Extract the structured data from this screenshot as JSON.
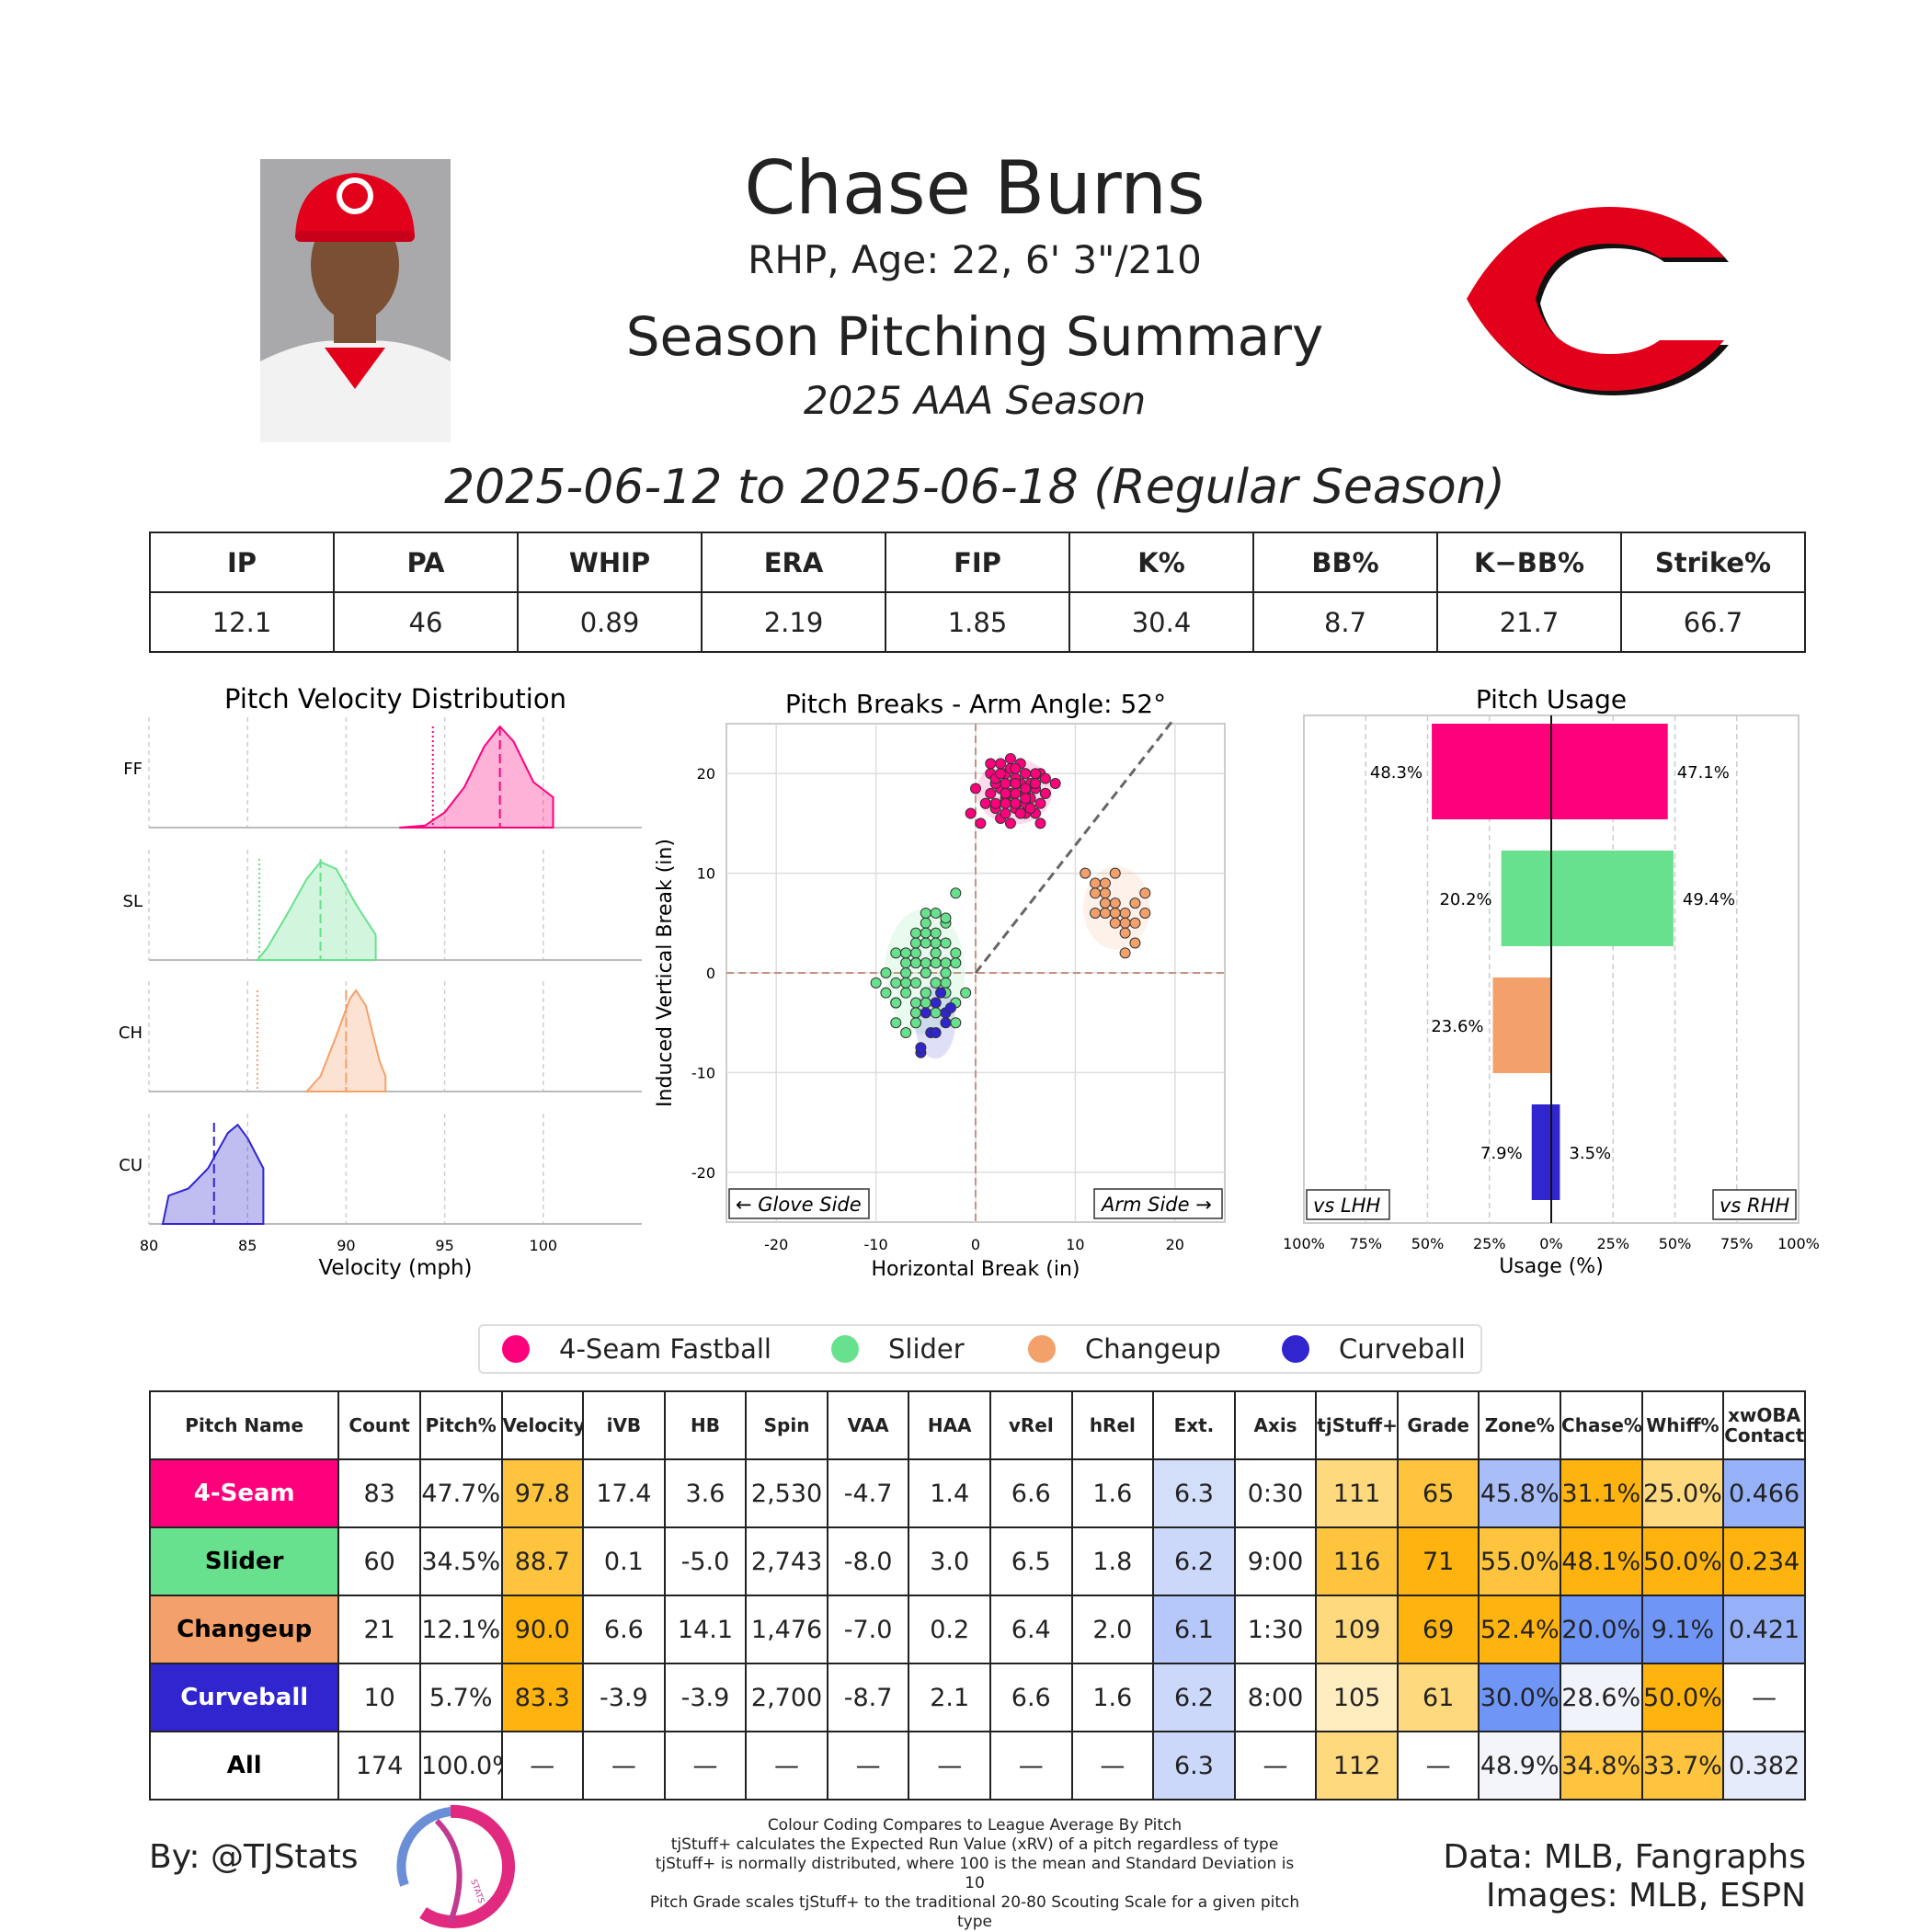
{
  "header": {
    "name": "Chase Burns",
    "bio": "RHP, Age: 22, 6' 3\"/210",
    "summary_title": "Season Pitching Summary",
    "season": "2025 AAA Season",
    "date_range": "2025-06-12 to 2025-06-18 (Regular Season)"
  },
  "colors": {
    "ff": "#ff007d",
    "sl": "#67e18d",
    "ch": "#f4a06b",
    "cu": "#3025ce",
    "team_red": "#e3001b"
  },
  "summary_stats": {
    "headers": [
      "IP",
      "PA",
      "WHIP",
      "ERA",
      "FIP",
      "K%",
      "BB%",
      "K−BB%",
      "Strike%"
    ],
    "values": [
      "12.1",
      "46",
      "0.89",
      "2.19",
      "1.85",
      "30.4",
      "8.7",
      "21.7",
      "66.7"
    ]
  },
  "chart_data": [
    {
      "type": "area",
      "title": "Pitch Velocity Distribution",
      "xlabel": "Velocity (mph)",
      "xlim": [
        80,
        105
      ],
      "xticks": [
        "80",
        "85",
        "90",
        "95",
        "100"
      ],
      "series": [
        {
          "name": "FF",
          "x": [
            92.7,
            94,
            95,
            96,
            97,
            97.8,
            98.5,
            99.5,
            100.5,
            100.5
          ],
          "y": [
            0,
            0.02,
            0.15,
            0.4,
            0.8,
            1.0,
            0.85,
            0.45,
            0.3,
            0
          ],
          "mean": 97.8,
          "league_mean": 94.4
        },
        {
          "name": "SL",
          "x": [
            85.5,
            86,
            87,
            88,
            88.7,
            89.5,
            90.5,
            91.5,
            91.5
          ],
          "y": [
            0,
            0.12,
            0.45,
            0.8,
            0.97,
            0.9,
            0.55,
            0.25,
            0
          ],
          "mean": 88.7,
          "league_mean": 85.6
        },
        {
          "name": "CH",
          "x": [
            88,
            88.7,
            89.5,
            90.2,
            90.5,
            91,
            91.7,
            92,
            92
          ],
          "y": [
            0,
            0.15,
            0.55,
            0.92,
            1.0,
            0.85,
            0.3,
            0.15,
            0
          ],
          "mean": 90.0,
          "league_mean": 85.5
        },
        {
          "name": "CU",
          "x": [
            80.7,
            81,
            82,
            83,
            84,
            84.5,
            85,
            85.8,
            85.8
          ],
          "y": [
            0,
            0.28,
            0.35,
            0.55,
            0.9,
            0.98,
            0.85,
            0.55,
            0
          ],
          "mean": 83.3,
          "league_mean": null
        }
      ]
    },
    {
      "type": "scatter",
      "title": "Pitch Breaks - Arm Angle: 52°",
      "xlabel": "Horizontal Break (in)",
      "ylabel": "Induced Vertical Break (in)",
      "xlim": [
        -25,
        25
      ],
      "ylim": [
        -25,
        25
      ],
      "xticks": [
        "-20",
        "-10",
        "0",
        "10",
        "20"
      ],
      "yticks": [
        "20",
        "10",
        "0",
        "-10",
        "-20"
      ],
      "arm_angle_deg": 52,
      "annotations": [
        "← Glove Side",
        "Arm Side →"
      ],
      "series": [
        {
          "name": "4-Seam Fastball",
          "x": [
            1.5,
            2,
            2.5,
            3,
            3.5,
            4,
            4.5,
            5,
            5.5,
            6,
            6.5,
            7,
            3,
            4,
            5,
            2,
            1,
            0.5,
            -0.5,
            0,
            1.5,
            2.5,
            3.5,
            4.5,
            5.5,
            6.5,
            3,
            4,
            5,
            6,
            2,
            3,
            4,
            5,
            6,
            7,
            1,
            2,
            3,
            4,
            5,
            6,
            7,
            8,
            2.5,
            3.5,
            4.5,
            5.5,
            6.5,
            3,
            4,
            5,
            6,
            2,
            3,
            4,
            5,
            1.5,
            2.5,
            3.5
          ],
          "y": [
            18,
            19,
            18.5,
            17.5,
            18,
            17,
            19,
            18,
            17.5,
            18.5,
            17,
            18,
            20,
            19.5,
            16,
            16.5,
            17,
            15,
            16,
            18.5,
            20,
            21,
            20.5,
            21,
            19,
            20,
            17,
            16.5,
            17,
            16,
            19,
            18,
            19,
            18.5,
            19,
            18,
            17,
            17,
            18,
            18,
            20,
            20,
            19.5,
            19,
            15.5,
            15,
            16,
            16.5,
            15,
            16,
            17,
            17.5,
            19,
            19.5,
            19,
            20.5,
            20,
            21,
            20,
            21.5
          ]
        },
        {
          "name": "Slider",
          "x": [
            -3,
            -4,
            -5,
            -6,
            -7,
            -8,
            -9,
            -4,
            -5,
            -6,
            -3,
            -2,
            -4,
            -5,
            -6,
            -7,
            -3,
            -4,
            -5,
            -6,
            -7,
            -8,
            -2,
            -3,
            -4,
            -5,
            -6,
            -7,
            -8,
            -9,
            -10,
            -4,
            -5,
            -6,
            -3,
            -2,
            -1,
            -4,
            -5,
            -6,
            -7,
            -3,
            -4,
            -5,
            -6,
            -2,
            -3,
            -4,
            -5,
            -6,
            -7,
            -8,
            -5,
            -4,
            -3,
            -2,
            -6,
            -7,
            -8,
            -4
          ],
          "y": [
            1,
            2,
            0,
            3,
            1,
            -1,
            0,
            4,
            -2,
            -3,
            5,
            8,
            -1,
            1,
            2,
            -2,
            -4,
            -3,
            3,
            4,
            0,
            2,
            -5,
            -1,
            6,
            5,
            -4,
            -6,
            -5,
            -2,
            -1,
            2,
            0,
            1,
            3,
            1,
            -2,
            -4,
            -3,
            -5,
            2,
            5.5,
            -1,
            -2,
            1,
            2,
            0,
            3,
            4,
            -1,
            2,
            -3,
            6,
            1,
            -2,
            -3,
            -4,
            -1,
            -3,
            1
          ]
        },
        {
          "name": "Changeup",
          "x": [
            11,
            12,
            13,
            14,
            15,
            16,
            17,
            12,
            13,
            14,
            15,
            16,
            17,
            12,
            13,
            14,
            15,
            16,
            15,
            14,
            13
          ],
          "y": [
            10,
            9,
            8,
            7,
            6,
            5,
            6,
            8,
            7,
            6,
            5,
            7,
            8,
            6,
            9,
            10,
            4,
            3,
            2,
            5,
            6
          ]
        },
        {
          "name": "Curveball",
          "x": [
            -5,
            -4.5,
            -4,
            -3.5,
            -3,
            -5.5,
            -4,
            -3,
            -2.5,
            -5.5
          ],
          "y": [
            -4,
            -6,
            -3,
            -2,
            -5,
            -8,
            -6,
            -4,
            -3.5,
            -7.5
          ]
        }
      ]
    },
    {
      "type": "bar",
      "title": "Pitch Usage",
      "xlabel": "Usage (%)",
      "xlim": [
        -100,
        100
      ],
      "xticks": [
        "100%",
        "75%",
        "50%",
        "25%",
        "0%",
        "25%",
        "50%",
        "75%",
        "100%"
      ],
      "annotations": [
        "vs LHH",
        "vs RHH"
      ],
      "categories": [
        "4-Seam Fastball",
        "Slider",
        "Changeup",
        "Curveball"
      ],
      "series": [
        {
          "name": "vs LHH",
          "values": [
            48.3,
            20.2,
            23.6,
            7.9
          ],
          "labels": [
            "48.3%",
            "20.2%",
            "23.6%",
            "7.9%"
          ]
        },
        {
          "name": "vs RHH",
          "values": [
            47.1,
            49.4,
            0,
            3.5
          ],
          "labels": [
            "47.1%",
            "49.4%",
            "",
            "3.5%"
          ]
        }
      ]
    }
  ],
  "legend": [
    "4-Seam Fastball",
    "Slider",
    "Changeup",
    "Curveball"
  ],
  "pitch_table": {
    "headers": [
      "Pitch Name",
      "Count",
      "Pitch%",
      "Velocity",
      "iVB",
      "HB",
      "Spin",
      "VAA",
      "HAA",
      "vRel",
      "hRel",
      "Ext.",
      "Axis",
      "tjStuff+",
      "Grade",
      "Zone%",
      "Chase%",
      "Whiff%",
      "xwOBA Contact"
    ],
    "rows": [
      {
        "cells": [
          "4-Seam",
          "83",
          "47.7%",
          "97.8",
          "17.4",
          "3.6",
          "2,530",
          "-4.7",
          "1.4",
          "6.6",
          "1.6",
          "6.3",
          "0:30",
          "111",
          "65",
          "45.8%",
          "31.1%",
          "25.0%",
          "0.466"
        ],
        "name_bg": "#ff007d",
        "name_fg": "#ffffff",
        "cell_bg": {
          "3": "#ffc43d",
          "11": "#d3def9",
          "13": "#ffd97d",
          "14": "#ffc43d",
          "15": "#a9bdf8",
          "16": "#ffb30f",
          "17": "#ffd97d",
          "18": "#96b1f8"
        }
      },
      {
        "cells": [
          "Slider",
          "60",
          "34.5%",
          "88.7",
          "0.1",
          "-5.0",
          "2,743",
          "-8.0",
          "3.0",
          "6.5",
          "1.8",
          "6.2",
          "9:00",
          "116",
          "71",
          "55.0%",
          "48.1%",
          "50.0%",
          "0.234"
        ],
        "name_bg": "#67e18d",
        "name_fg": "#000000",
        "cell_bg": {
          "3": "#ffc43d",
          "11": "#cbd8f9",
          "13": "#ffc43d",
          "14": "#ffb30f",
          "15": "#ffc43d",
          "16": "#ffb30f",
          "17": "#ffb30f",
          "18": "#ffb30f"
        }
      },
      {
        "cells": [
          "Changeup",
          "21",
          "12.1%",
          "90.0",
          "6.6",
          "14.1",
          "1,476",
          "-7.0",
          "0.2",
          "6.4",
          "2.0",
          "6.1",
          "1:30",
          "109",
          "69",
          "52.4%",
          "20.0%",
          "9.1%",
          "0.421"
        ],
        "name_bg": "#f4a06b",
        "name_fg": "#000000",
        "cell_bg": {
          "3": "#ffb30f",
          "11": "#b6c8f9",
          "13": "#ffd97d",
          "14": "#ffb30f",
          "15": "#ffb30f",
          "16": "#6f96f7",
          "17": "#6f96f7",
          "18": "#96b1f8"
        }
      },
      {
        "cells": [
          "Curveball",
          "10",
          "5.7%",
          "83.3",
          "-3.9",
          "-3.9",
          "2,700",
          "-8.7",
          "2.1",
          "6.6",
          "1.6",
          "6.2",
          "8:00",
          "105",
          "61",
          "30.0%",
          "28.6%",
          "50.0%",
          "—"
        ],
        "name_bg": "#3025ce",
        "name_fg": "#ffffff",
        "cell_bg": {
          "3": "#ffb30f",
          "11": "#cbd8f9",
          "13": "#ffedc0",
          "14": "#ffd97d",
          "15": "#6f96f7",
          "16": "#f1f3fb",
          "17": "#ffb30f"
        }
      },
      {
        "cells": [
          "All",
          "174",
          "100.0%",
          "—",
          "—",
          "—",
          "—",
          "—",
          "—",
          "—",
          "—",
          "6.3",
          "—",
          "112",
          "—",
          "48.9%",
          "34.8%",
          "33.7%",
          "0.382"
        ],
        "name_bg": "#ffffff",
        "name_fg": "#000000",
        "cell_bg": {
          "11": "#cbd8f9",
          "13": "#ffd97d",
          "15": "#f4f5fb",
          "16": "#ffc43d",
          "17": "#ffc43d",
          "18": "#e5ebfb"
        }
      }
    ]
  },
  "footer": {
    "byline": "By: @TJStats",
    "logo_text": "STATS",
    "notes": [
      "Colour Coding Compares to League Average By Pitch",
      "tjStuff+ calculates the Expected Run Value (xRV) of a pitch regardless of type",
      "tjStuff+ is normally distributed, where 100 is the mean and Standard Deviation is 10",
      "Pitch Grade scales tjStuff+ to the traditional 20-80 Scouting Scale for a given pitch type"
    ],
    "data_credit": "Data: MLB, Fangraphs",
    "image_credit": "Images: MLB, ESPN"
  }
}
